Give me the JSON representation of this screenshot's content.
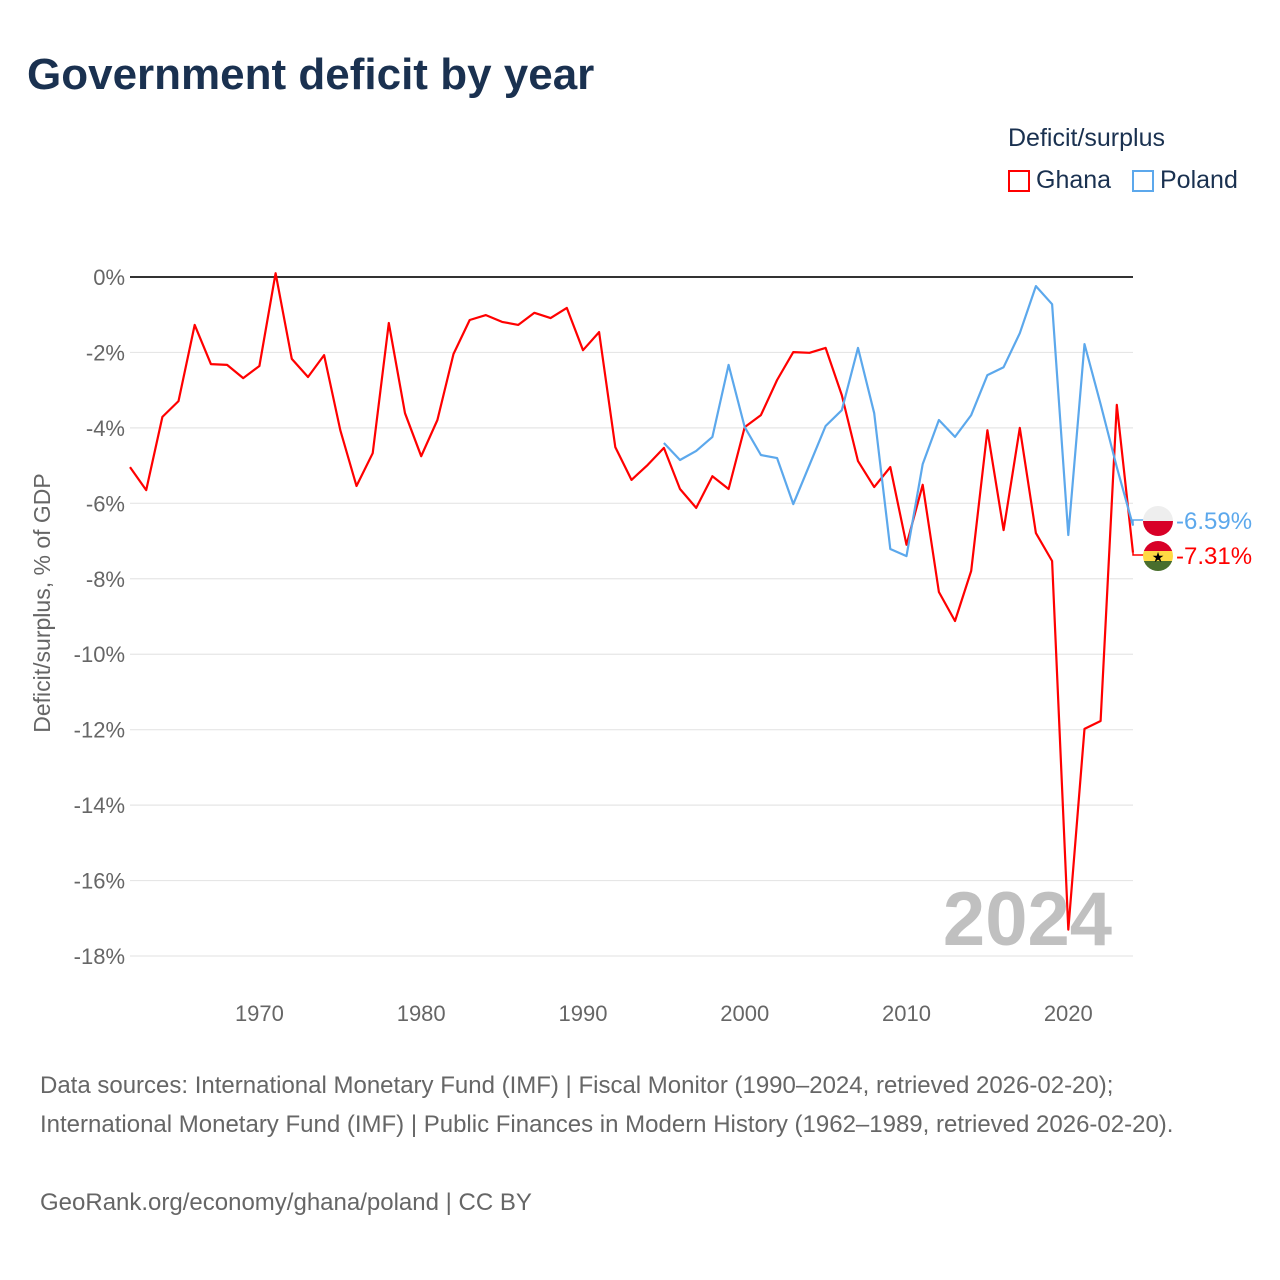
{
  "chart_data": {
    "type": "line",
    "title": "Government deficit by year",
    "ylabel": "Deficit/surplus, % of GDP",
    "xlabel": "",
    "xlim": [
      1962,
      2024
    ],
    "ylim": [
      -18,
      0
    ],
    "x_ticks": [
      1970,
      1980,
      1990,
      2000,
      2010,
      2020
    ],
    "y_ticks": [
      0,
      -2,
      -4,
      -6,
      -8,
      -10,
      -12,
      -14,
      -16,
      -18
    ],
    "y_tick_labels": [
      "0%",
      "-2%",
      "-4%",
      "-6%",
      "-8%",
      "-10%",
      "-12%",
      "-14%",
      "-16%",
      "-18%"
    ],
    "grid": true,
    "legend": {
      "title": "Deficit/surplus",
      "placement": "top-right"
    },
    "year_watermark": "2024",
    "series": [
      {
        "name": "Ghana",
        "color": "#ff0000",
        "end_label": "-7.31%",
        "start": 1962,
        "values": [
          -5.04,
          -5.65,
          -3.71,
          -3.29,
          -1.27,
          -2.31,
          -2.33,
          -2.68,
          -2.36,
          0.1,
          -2.17,
          -2.65,
          -2.07,
          -4.06,
          -5.54,
          -4.67,
          -1.22,
          -3.61,
          -4.75,
          -3.79,
          -2.04,
          -1.14,
          -1.01,
          -1.19,
          -1.27,
          -0.95,
          -1.09,
          -0.82,
          -1.94,
          -1.46,
          -4.51,
          -5.38,
          -4.98,
          -4.53,
          -5.62,
          -6.12,
          -5.28,
          -5.62,
          -3.98,
          -3.66,
          -2.73,
          -1.99,
          -2.01,
          -1.88,
          -3.13,
          -4.88,
          -5.57,
          -5.04,
          -7.1,
          -5.51,
          -8.35,
          -9.12,
          -7.79,
          -4.06,
          -6.71,
          -4.0,
          -6.79,
          -7.53,
          -17.3,
          -11.98,
          -11.77,
          -3.39,
          -7.31
        ]
      },
      {
        "name": "Poland",
        "color": "#5ca8ec",
        "end_label": "-6.59%",
        "start": 1995,
        "values": [
          -4.4,
          -4.85,
          -4.61,
          -4.24,
          -2.33,
          -3.98,
          -4.72,
          -4.8,
          -6.02,
          -4.98,
          -3.95,
          -3.53,
          -1.88,
          -3.61,
          -7.21,
          -7.4,
          -4.96,
          -3.79,
          -4.24,
          -3.66,
          -2.6,
          -2.39,
          -1.49,
          -0.24,
          -0.72,
          -6.84,
          -1.78,
          -3.37,
          -5.04,
          -6.59
        ]
      }
    ]
  },
  "footer": {
    "sources": "Data sources: International Monetary Fund (IMF) | Fiscal Monitor (1990–2024, retrieved 2026-02-20); International Monetary Fund (IMF) | Public Finances in Modern History (1962–1989, retrieved 2026-02-20).",
    "credit": "GeoRank.org/economy/ghana/poland | CC BY"
  }
}
